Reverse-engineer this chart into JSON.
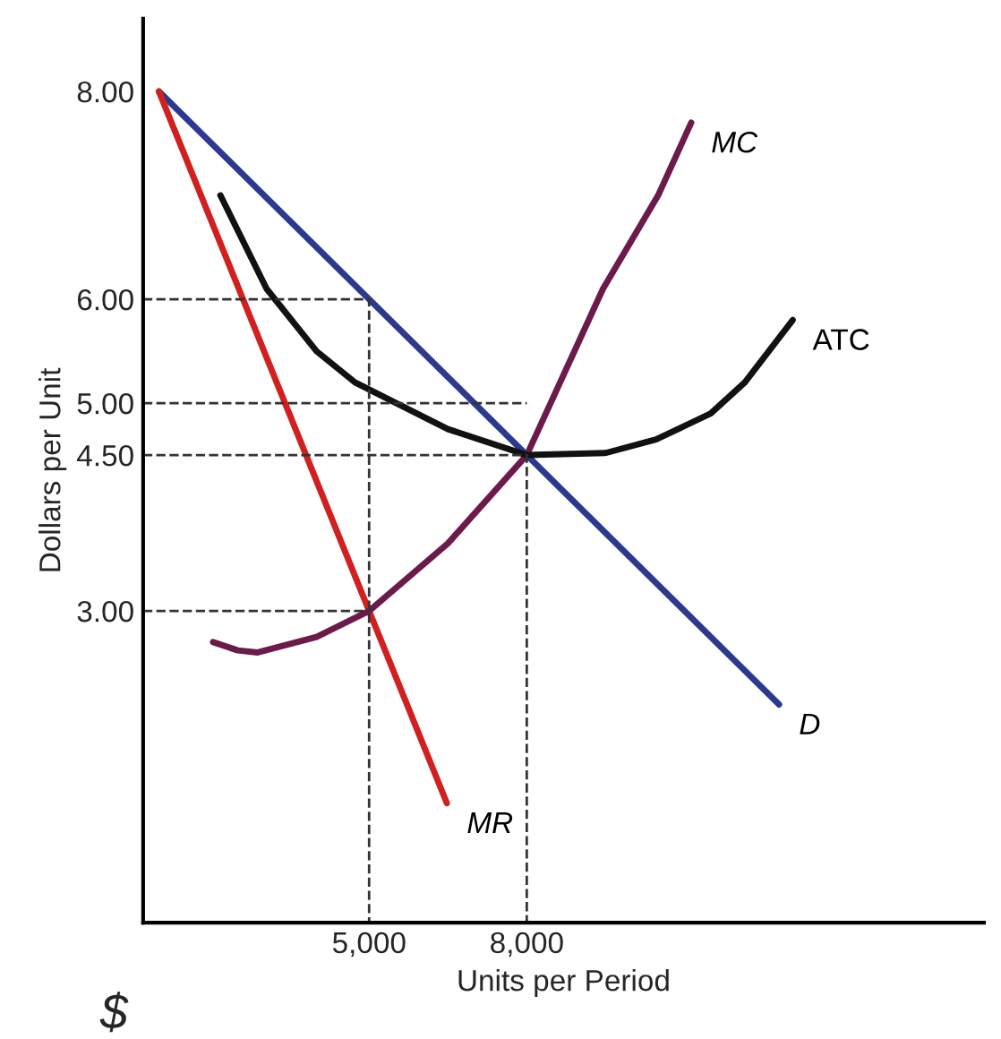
{
  "chart_data": {
    "type": "line",
    "xlabel": "Units per Period",
    "ylabel": "Dollars per Unit",
    "xlim": [
      700,
      16700
    ],
    "ylim": [
      0,
      8.7
    ],
    "xticks": [
      {
        "value": 5000,
        "label": "5,000"
      },
      {
        "value": 8000,
        "label": "8,000"
      }
    ],
    "yticks": [
      {
        "value": 3,
        "label": "3.00"
      },
      {
        "value": 4.5,
        "label": "4.50"
      },
      {
        "value": 5,
        "label": "5.00"
      },
      {
        "value": 6,
        "label": "6.00"
      },
      {
        "value": 8,
        "label": "8.00"
      }
    ],
    "grid": false,
    "legend": false,
    "marker": "none",
    "series": [
      {
        "name": "D",
        "color": "#2b3a90",
        "x": [
          1000,
          12800
        ],
        "values": [
          8,
          2.1
        ]
      },
      {
        "name": "MR",
        "color": "#d02020",
        "x": [
          1000,
          6480
        ],
        "values": [
          8,
          1.15
        ]
      },
      {
        "name": "MC",
        "color": "#6b1a4a",
        "x": [
          2030,
          2500,
          2880,
          4000,
          5000,
          6500,
          8000,
          9450,
          10500,
          11130
        ],
        "values": [
          2.7,
          2.62,
          2.6,
          2.75,
          3,
          3.65,
          4.5,
          6.1,
          7.0,
          7.7
        ]
      },
      {
        "name": "ATC",
        "color": "#111111",
        "x": [
          2170,
          3050,
          4000,
          4730,
          6500,
          8000,
          9500,
          10460,
          11500,
          12150,
          13060
        ],
        "values": [
          7.0,
          6.1,
          5.5,
          5.2,
          4.75,
          4.5,
          4.52,
          4.65,
          4.9,
          5.2,
          5.8
        ]
      },
      {
        "type": "line",
        "line_style": "dashed",
        "color": "#333333",
        "x": [
          700,
          5000,
          5000
        ],
        "values": [
          6,
          6,
          0
        ]
      },
      {
        "type": "line",
        "line_style": "dashed",
        "color": "#333333",
        "x": [
          700,
          8000
        ],
        "values": [
          5,
          5
        ]
      },
      {
        "type": "line",
        "line_style": "dashed",
        "color": "#333333",
        "x": [
          700,
          8000,
          8000
        ],
        "values": [
          4.5,
          4.5,
          0
        ]
      },
      {
        "type": "line",
        "line_style": "dashed",
        "color": "#333333",
        "x": [
          700,
          5000
        ],
        "values": [
          3,
          3
        ]
      }
    ],
    "annotations": [
      "$"
    ]
  }
}
